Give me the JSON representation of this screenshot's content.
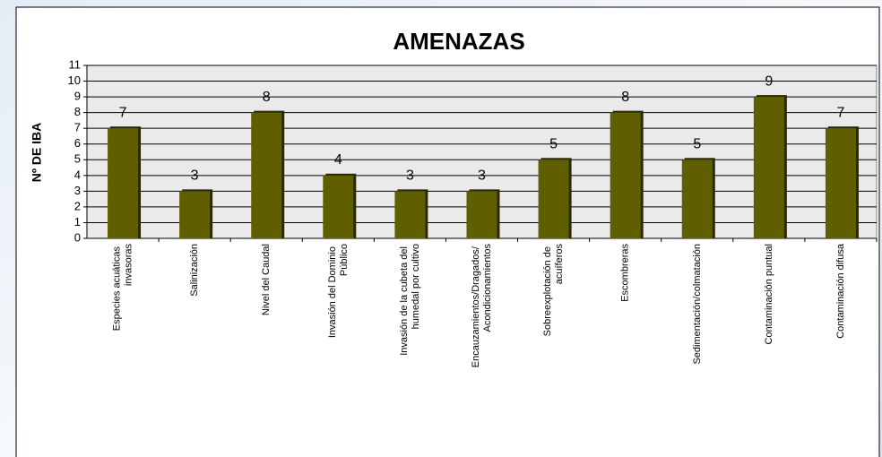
{
  "chart_data": {
    "type": "bar",
    "title": "AMENAZAS",
    "y_label": "Nº DE IBA",
    "categories": [
      "Especies acuáticas invasoras",
      "Salinización",
      "Nivel del Caudal",
      "Invasión del Dominio Público",
      "Invasión de la cubeta del humedal por cultivo",
      "Encauzamientos/Dragados/ Acondicionamientos",
      "Sobreexplotación de acuíferos",
      "Escombreras",
      "Sedimentación/colmatación",
      "Contaminación puntual",
      "Contaminación difusa"
    ],
    "values": [
      7,
      3,
      8,
      4,
      3,
      3,
      5,
      8,
      5,
      9,
      7
    ],
    "color": "#5f5f00",
    "ylim": [
      0,
      11
    ],
    "yticks": [
      0,
      1,
      2,
      3,
      4,
      5,
      6,
      7,
      8,
      9,
      10,
      11
    ],
    "grid": true
  }
}
